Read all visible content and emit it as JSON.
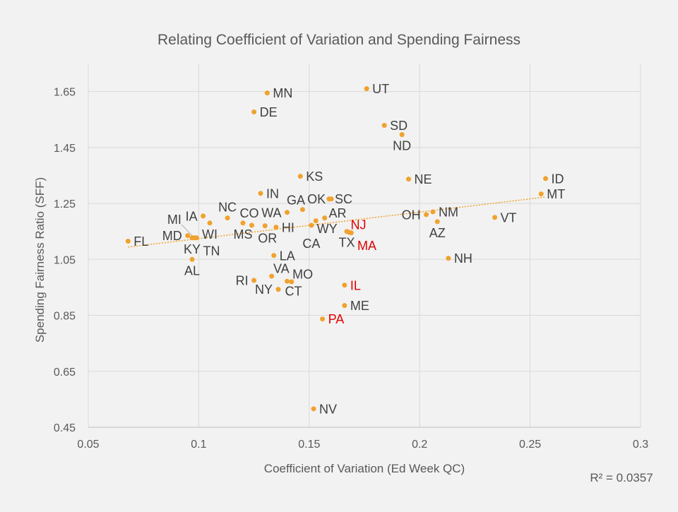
{
  "chart_data": {
    "type": "scatter",
    "title": "Relating Coefficient of Variation and Spending Fairness",
    "xlabel": "Coefficient of Variation (Ed Week QC)",
    "ylabel": "Spending Fairness Ratio (SFF)",
    "xlim": [
      0.05,
      0.3
    ],
    "ylim": [
      0.45,
      1.75
    ],
    "xticks": [
      "0.05",
      "0.1",
      "0.15",
      "0.2",
      "0.25",
      "0.3"
    ],
    "yticks": [
      "0.45",
      "0.65",
      "0.85",
      "1.05",
      "1.25",
      "1.45",
      "1.65"
    ],
    "grid": true,
    "marker_color": "#f0a22e",
    "label_color": "#404040",
    "highlight_color": "#e00000",
    "trendline": {
      "type": "linear",
      "style": "dotted",
      "x": [
        0.068,
        0.257
      ],
      "y": [
        1.094,
        1.273
      ],
      "r_squared_label": "R² = 0.0357"
    },
    "points": [
      {
        "label": "MN",
        "x": 0.131,
        "y": 1.645
      },
      {
        "label": "DE",
        "x": 0.125,
        "y": 1.577
      },
      {
        "label": "UT",
        "x": 0.176,
        "y": 1.66
      },
      {
        "label": "SD",
        "x": 0.184,
        "y": 1.529
      },
      {
        "label": "ND",
        "x": 0.192,
        "y": 1.496
      },
      {
        "label": "KS",
        "x": 0.146,
        "y": 1.347
      },
      {
        "label": "NE",
        "x": 0.195,
        "y": 1.337
      },
      {
        "label": "ID",
        "x": 0.257,
        "y": 1.339
      },
      {
        "label": "MT",
        "x": 0.255,
        "y": 1.284
      },
      {
        "label": "IN",
        "x": 0.128,
        "y": 1.286
      },
      {
        "label": "SC",
        "x": 0.159,
        "y": 1.266
      },
      {
        "label": "OK",
        "x": 0.16,
        "y": 1.266
      },
      {
        "label": "WA",
        "x": 0.14,
        "y": 1.218
      },
      {
        "label": "GA",
        "x": 0.147,
        "y": 1.228
      },
      {
        "label": "IA",
        "x": 0.102,
        "y": 1.205
      },
      {
        "label": "NC",
        "x": 0.113,
        "y": 1.198
      },
      {
        "label": "NM",
        "x": 0.206,
        "y": 1.22
      },
      {
        "label": "OH",
        "x": 0.203,
        "y": 1.21
      },
      {
        "label": "AZ",
        "x": 0.208,
        "y": 1.185
      },
      {
        "label": "VT",
        "x": 0.234,
        "y": 1.2
      },
      {
        "label": "WI",
        "x": 0.105,
        "y": 1.18
      },
      {
        "label": "MS",
        "x": 0.12,
        "y": 1.18
      },
      {
        "label": "OR",
        "x": 0.124,
        "y": 1.172
      },
      {
        "label": "CO",
        "x": 0.13,
        "y": 1.17
      },
      {
        "label": "HI",
        "x": 0.135,
        "y": 1.165
      },
      {
        "label": "WY",
        "x": 0.153,
        "y": 1.188
      },
      {
        "label": "AR",
        "x": 0.157,
        "y": 1.198
      },
      {
        "label": "CA",
        "x": 0.151,
        "y": 1.172
      },
      {
        "label": "TX",
        "x": 0.167,
        "y": 1.15
      },
      {
        "label": "NJ",
        "x": 0.168,
        "y": 1.147,
        "highlight": true
      },
      {
        "label": "MA",
        "x": 0.169,
        "y": 1.145,
        "highlight": true
      },
      {
        "label": "MD",
        "x": 0.095,
        "y": 1.135
      },
      {
        "label": "KY",
        "x": 0.097,
        "y": 1.127
      },
      {
        "label": "MI",
        "x": 0.098,
        "y": 1.127
      },
      {
        "label": "TN",
        "x": 0.099,
        "y": 1.127
      },
      {
        "label": "FL",
        "x": 0.068,
        "y": 1.115
      },
      {
        "label": "AL",
        "x": 0.097,
        "y": 1.05
      },
      {
        "label": "LA",
        "x": 0.134,
        "y": 1.064
      },
      {
        "label": "NH",
        "x": 0.213,
        "y": 1.054
      },
      {
        "label": "VA",
        "x": 0.133,
        "y": 0.99
      },
      {
        "label": "RI",
        "x": 0.125,
        "y": 0.975
      },
      {
        "label": "CT",
        "x": 0.14,
        "y": 0.972
      },
      {
        "label": "MO",
        "x": 0.142,
        "y": 0.97
      },
      {
        "label": "NY",
        "x": 0.136,
        "y": 0.943
      },
      {
        "label": "IL",
        "x": 0.166,
        "y": 0.958,
        "highlight": true
      },
      {
        "label": "ME",
        "x": 0.166,
        "y": 0.885
      },
      {
        "label": "PA",
        "x": 0.156,
        "y": 0.837,
        "highlight": true
      },
      {
        "label": "NV",
        "x": 0.152,
        "y": 0.516
      }
    ]
  }
}
